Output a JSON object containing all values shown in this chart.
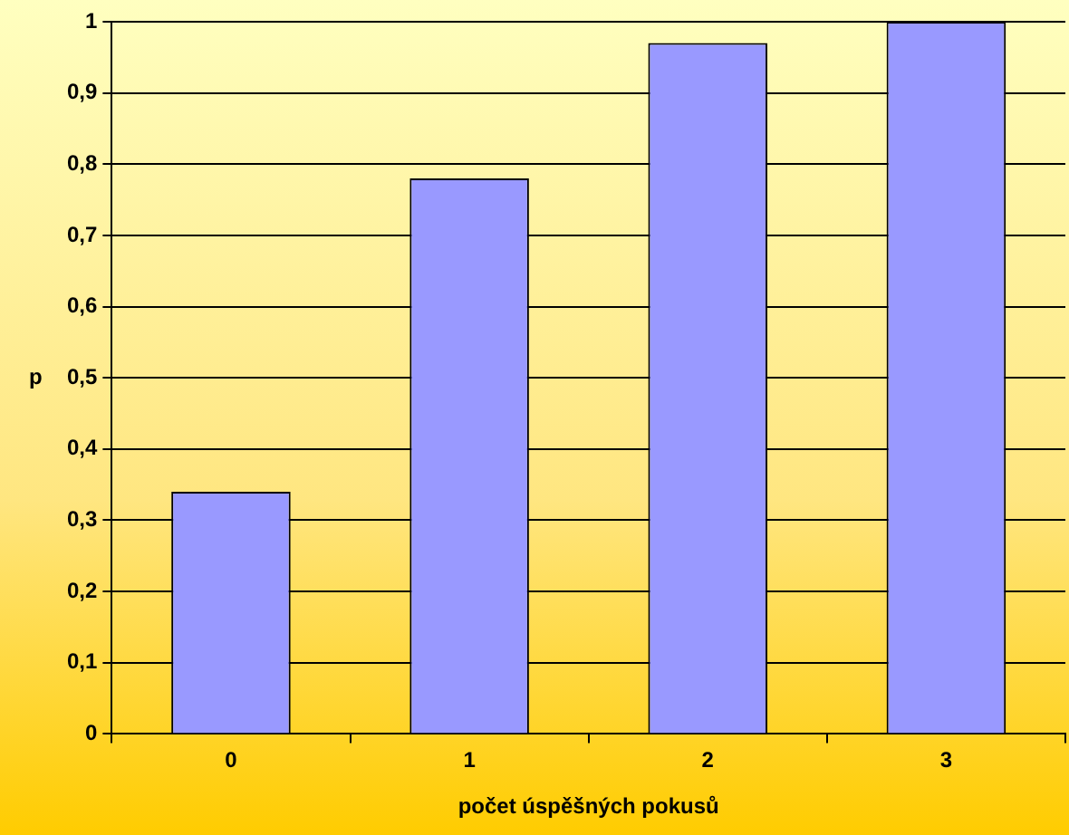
{
  "chart_data": {
    "type": "bar",
    "xlabel": "počet úspěšných pokusů",
    "ylabel": "p",
    "categories": [
      "0",
      "1",
      "2",
      "3"
    ],
    "values": [
      0.34,
      0.78,
      0.97,
      1.0
    ],
    "color": "#9999ff",
    "ylim": [
      0,
      1
    ],
    "yticks": [
      0,
      {
        "value": 0.1,
        "label": "0,1"
      },
      {
        "value": 0.2,
        "label": "0,2"
      },
      {
        "value": 0.3,
        "label": "0,3"
      },
      {
        "value": 0.4,
        "label": "0,4"
      },
      {
        "value": 0.5,
        "label": "0,5"
      },
      {
        "value": 0.6,
        "label": "0,6"
      },
      {
        "value": 0.7,
        "label": "0,7"
      },
      {
        "value": 0.8,
        "label": "0,8"
      },
      {
        "value": 0.9,
        "label": "0,9"
      },
      1
    ],
    "grid": "y"
  }
}
